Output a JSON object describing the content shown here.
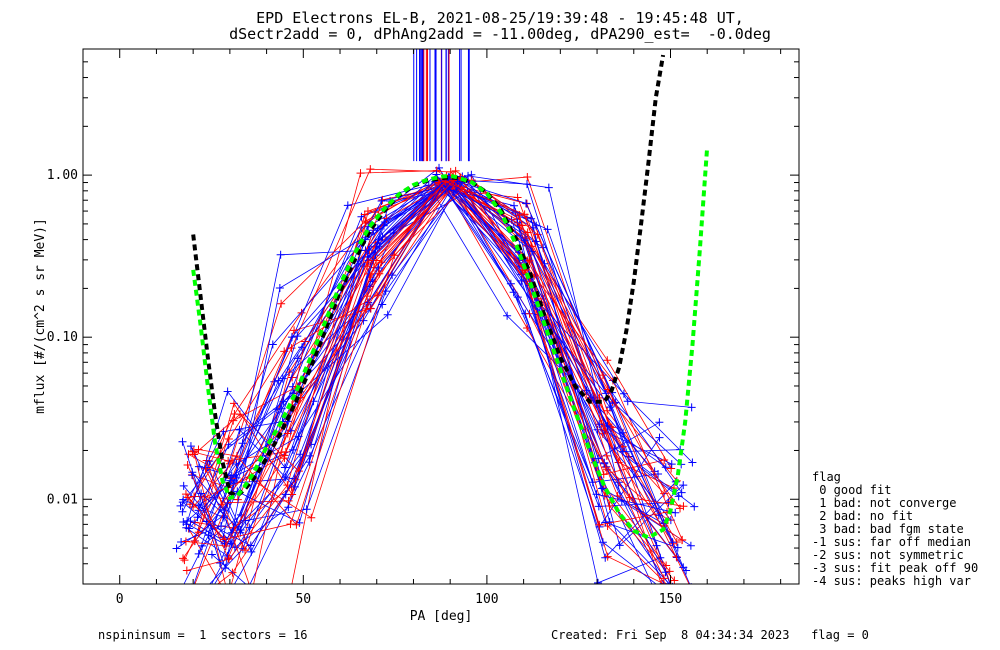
{
  "header": {
    "line1": "EPD Electrons EL-B, 2021-08-25/19:39:48 - 19:45:48 UT,",
    "line2": "dSectr2add = 0, dPhAng2add = -11.00deg, dPA290_est=  -0.0deg"
  },
  "chart_data": {
    "type": "scatter",
    "xlabel": "PA [deg]",
    "ylabel": "mflux [#/(cm^2 s sr MeV)]",
    "xlim": [
      -10,
      185
    ],
    "ylim": [
      0.003,
      6.0
    ],
    "yscale": "log",
    "xticks": [
      0,
      50,
      100,
      150
    ],
    "xtick_labels": [
      "0",
      "50",
      "100",
      "150"
    ],
    "yticks": [
      0.01,
      0.1,
      1.0
    ],
    "ytick_labels": [
      "0.01",
      "0.10",
      "1.00"
    ],
    "colors": {
      "red": "#ff0000",
      "blue": "#0000ff",
      "black": "#000000",
      "green": "#00ff00"
    },
    "pa_bins": [
      20,
      31,
      47,
      69,
      90,
      111,
      133,
      151
    ],
    "curves": [
      {
        "name": "black-fit",
        "color": "#000000",
        "dashed": true,
        "x": [
          20,
          22,
          24,
          26,
          28,
          30,
          32,
          34,
          36,
          38,
          40,
          44,
          48,
          52,
          56,
          60,
          64,
          68,
          72,
          76,
          80,
          84,
          88,
          90,
          92,
          96,
          100,
          104,
          108,
          112,
          116,
          120,
          124,
          128,
          132,
          134,
          136,
          138,
          140,
          142,
          144,
          146,
          148
        ],
        "y": [
          0.43,
          0.18,
          0.075,
          0.033,
          0.017,
          0.011,
          0.0105,
          0.0115,
          0.013,
          0.015,
          0.018,
          0.026,
          0.04,
          0.065,
          0.11,
          0.19,
          0.3,
          0.45,
          0.6,
          0.75,
          0.86,
          0.93,
          0.96,
          0.97,
          0.96,
          0.9,
          0.78,
          0.6,
          0.4,
          0.24,
          0.13,
          0.075,
          0.05,
          0.04,
          0.04,
          0.047,
          0.065,
          0.11,
          0.22,
          0.5,
          1.2,
          3.0,
          5.5
        ]
      },
      {
        "name": "green-fit",
        "color": "#00ff00",
        "dashed": true,
        "x": [
          20,
          22,
          24,
          26,
          28,
          30,
          32,
          34,
          36,
          38,
          40,
          44,
          48,
          52,
          56,
          60,
          64,
          68,
          72,
          76,
          80,
          84,
          88,
          90,
          92,
          96,
          100,
          104,
          108,
          112,
          116,
          120,
          124,
          128,
          132,
          136,
          140,
          144,
          148,
          150,
          152,
          154,
          156,
          158,
          160
        ],
        "y": [
          0.26,
          0.12,
          0.05,
          0.022,
          0.013,
          0.0102,
          0.0105,
          0.012,
          0.014,
          0.017,
          0.021,
          0.03,
          0.046,
          0.075,
          0.125,
          0.21,
          0.33,
          0.48,
          0.62,
          0.76,
          0.87,
          0.94,
          0.98,
          0.99,
          0.97,
          0.9,
          0.77,
          0.58,
          0.37,
          0.21,
          0.115,
          0.063,
          0.035,
          0.02,
          0.012,
          0.0082,
          0.0064,
          0.0058,
          0.0065,
          0.0085,
          0.014,
          0.03,
          0.09,
          0.35,
          1.5
        ]
      }
    ],
    "legend": {
      "position": "right",
      "title": "flag",
      "entries": [
        " 0 good fit",
        " 1 bad: not converge",
        " 2 bad: no fit",
        " 3 bad: bad fgm state",
        "-1 sus: far off median",
        "-2 sus: not symmetric",
        "-3 sus: fit peak off 90",
        "-4 sus: peaks high var"
      ]
    }
  },
  "footer": {
    "left": "nspininsum =  1  sectors = 16",
    "right": "Created: Fri Sep  8 04:34:34 2023   flag = 0"
  }
}
